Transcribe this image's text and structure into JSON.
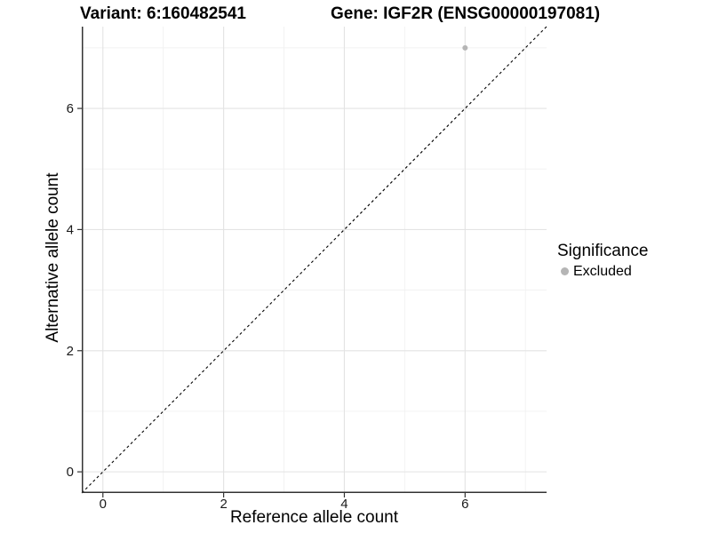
{
  "header": {
    "title_left": "Variant: 6:160482541",
    "title_right": "Gene: IGF2R (ENSG00000197081)"
  },
  "chart_data": {
    "type": "scatter",
    "titles": [
      "Variant: 6:160482541",
      "Gene: IGF2R (ENSG00000197081)"
    ],
    "xlabel": "Reference allele count",
    "ylabel": "Alternative allele count",
    "xlim": [
      -0.35,
      7.35
    ],
    "ylim": [
      -0.35,
      7.35
    ],
    "x_ticks": [
      0,
      2,
      4,
      6
    ],
    "y_ticks": [
      0,
      2,
      4,
      6
    ],
    "minor_grid_x": [
      1,
      3,
      5,
      7
    ],
    "minor_grid_y": [
      1,
      3,
      5,
      7
    ],
    "grid": "on",
    "identity_line": {
      "slope": 1,
      "intercept": 0,
      "style": "dashed",
      "color": "#000000"
    },
    "series": [
      {
        "name": "Excluded",
        "color": "#b5b5b5",
        "points": [
          [
            6,
            7
          ]
        ]
      }
    ],
    "legend": {
      "title": "Significance",
      "position": "right",
      "items": [
        {
          "label": "Excluded",
          "color": "#b5b5b5"
        }
      ]
    },
    "style": {
      "axis_color": "#333333",
      "grid_major_color": "#e3e3e3",
      "grid_minor_color": "#f1f1f1",
      "tick_label_color": "#1a1a1a",
      "point_radius": 3,
      "background": "#ffffff"
    }
  }
}
